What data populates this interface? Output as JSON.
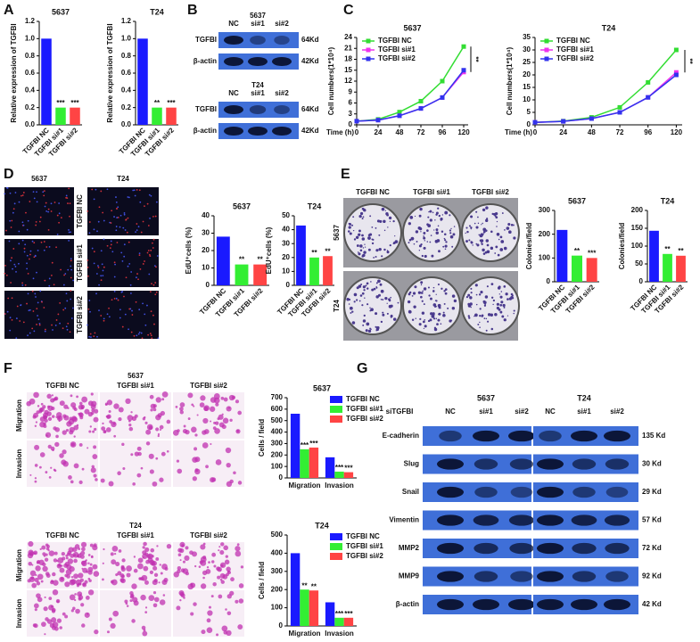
{
  "panel_labels": [
    "A",
    "B",
    "C",
    "D",
    "E",
    "F",
    "G"
  ],
  "chart_data": [
    {
      "type": "bar",
      "title": "5637",
      "ylabel": "Relative expression of TGFBI",
      "categories": [
        "TGFBI NC",
        "TGFBI si#1",
        "TGFBI si#2"
      ],
      "values": [
        1.0,
        0.2,
        0.2
      ],
      "significance": [
        null,
        "***",
        "***"
      ],
      "colors": [
        "#1a1aff",
        "#33ee33",
        "#ff4444"
      ],
      "ylim": [
        0,
        1.2
      ],
      "yticks": [
        {
          "value": 0,
          "label": "0.0"
        },
        0.2,
        0.4,
        0.6,
        0.8,
        {
          "value": 1,
          "label": "1.0"
        },
        1.2
      ]
    },
    {
      "type": "bar",
      "title": "T24",
      "ylabel": "Relative expression of TGFBI",
      "categories": [
        "TGFBI NC",
        "TGFBI si#1",
        "TGFBI si#2"
      ],
      "values": [
        1.0,
        0.2,
        0.2
      ],
      "significance": [
        null,
        "**",
        "***"
      ],
      "colors": [
        "#1a1aff",
        "#33ee33",
        "#ff4444"
      ],
      "ylim": [
        0,
        1.2
      ],
      "yticks": [
        {
          "value": 0,
          "label": "0.0"
        },
        0.2,
        0.4,
        0.6,
        0.8,
        {
          "value": 1,
          "label": "1.0"
        },
        1.2
      ]
    },
    {
      "type": "line",
      "title": "5637",
      "ylabel": "Cell numbers(1*10⁴)",
      "xlabel": "Time (h)",
      "x": [
        0,
        24,
        48,
        72,
        96,
        120
      ],
      "xlim": [
        0,
        125
      ],
      "xticks": [
        0,
        24,
        48,
        72,
        96,
        120
      ],
      "ylim": [
        0,
        24
      ],
      "yticks": [
        0,
        3,
        6,
        9,
        12,
        15,
        18,
        21,
        24
      ],
      "annotation": "**",
      "series": [
        {
          "name": "TGFBI NC",
          "color": "#33dd33",
          "values": [
            1,
            1.5,
            3.5,
            6.5,
            12,
            21.5
          ]
        },
        {
          "name": "TGFBI  si#1",
          "color": "#ee33ee",
          "values": [
            1,
            1.3,
            2.5,
            4.5,
            7.5,
            14.5
          ]
        },
        {
          "name": "TGFBI  si#2",
          "color": "#3333ee",
          "values": [
            1,
            1.3,
            2.5,
            4.5,
            7.5,
            15
          ]
        }
      ]
    },
    {
      "type": "line",
      "title": "T24",
      "ylabel": "Cell numbers(1*10⁴)",
      "xlabel": "Time (h)",
      "x": [
        0,
        24,
        48,
        72,
        96,
        120
      ],
      "xlim": [
        0,
        125
      ],
      "xticks": [
        0,
        24,
        48,
        72,
        96,
        120
      ],
      "ylim": [
        0,
        35
      ],
      "yticks": [
        0,
        5,
        10,
        15,
        20,
        25,
        30,
        35
      ],
      "annotation": "**",
      "series": [
        {
          "name": "TGFBI  NC",
          "color": "#33dd33",
          "values": [
            1,
            1.5,
            3,
            7,
            17,
            30
          ]
        },
        {
          "name": "TGFBI  si#1",
          "color": "#ee33ee",
          "values": [
            1,
            1.4,
            2.5,
            5,
            11,
            21
          ]
        },
        {
          "name": "TGFBI  si#2",
          "color": "#3333ee",
          "values": [
            1,
            1.4,
            2.5,
            5,
            11,
            20
          ]
        }
      ]
    },
    {
      "type": "bar",
      "title": "5637",
      "ylabel": "EdU⁺cells (%)",
      "categories": [
        "TGFBI NC",
        "TGFBI si#1",
        "TGFBI si#2"
      ],
      "values": [
        28,
        12,
        12
      ],
      "significance": [
        null,
        "**",
        "**"
      ],
      "colors": [
        "#1a1aff",
        "#33ee33",
        "#ff4444"
      ],
      "ylim": [
        0,
        40
      ],
      "yticks": [
        0,
        10,
        20,
        30,
        40
      ]
    },
    {
      "type": "bar",
      "title": "T24",
      "ylabel": "EdU⁺cells (%)",
      "categories": [
        "TGFBI NC",
        "TGFBI si#1",
        "TGFBI si#2"
      ],
      "values": [
        43,
        20,
        21
      ],
      "significance": [
        null,
        "**",
        "**"
      ],
      "colors": [
        "#1a1aff",
        "#33ee33",
        "#ff4444"
      ],
      "ylim": [
        0,
        50
      ],
      "yticks": [
        0,
        10,
        20,
        30,
        40,
        50
      ]
    },
    {
      "type": "bar",
      "title": "5637",
      "ylabel": "Colonies/field",
      "categories": [
        "TGFBI NC",
        "TGFBI si#1",
        "TGFBI si#2"
      ],
      "values": [
        218,
        110,
        100
      ],
      "significance": [
        null,
        "**",
        "***"
      ],
      "colors": [
        "#1a1aff",
        "#33ee33",
        "#ff4444"
      ],
      "ylim": [
        0,
        300
      ],
      "yticks": [
        0,
        100,
        200,
        300
      ]
    },
    {
      "type": "bar",
      "title": "T24",
      "ylabel": "Colonies/field",
      "categories": [
        "TGFBI NC",
        "TGFBI si#1",
        "TGFBI si#2"
      ],
      "values": [
        143,
        78,
        73
      ],
      "significance": [
        null,
        "**",
        "**"
      ],
      "colors": [
        "#1a1aff",
        "#33ee33",
        "#ff4444"
      ],
      "ylim": [
        0,
        200
      ],
      "yticks": [
        0,
        50,
        100,
        150,
        200
      ]
    },
    {
      "type": "bar",
      "title": "5637",
      "ylabel": "Cells / field",
      "categories": [
        "Migration",
        "Invasion"
      ],
      "legend": "upper right",
      "ylim": [
        0,
        700
      ],
      "yticks": [
        0,
        100,
        200,
        300,
        400,
        500,
        600,
        700
      ],
      "series": [
        {
          "name": "TGFBI NC",
          "color": "#1a1aff",
          "values": [
            560,
            180
          ],
          "significance": [
            null,
            null
          ]
        },
        {
          "name": "TGFBI si#1",
          "color": "#33ee33",
          "values": [
            250,
            55
          ],
          "significance": [
            "***",
            "***"
          ]
        },
        {
          "name": "TGFBI si#2",
          "color": "#ff4444",
          "values": [
            265,
            50
          ],
          "significance": [
            "***",
            "***"
          ]
        }
      ]
    },
    {
      "type": "bar",
      "title": "T24",
      "ylabel": "Cells / field",
      "categories": [
        "Migration",
        "Invasion"
      ],
      "legend": "upper right",
      "ylim": [
        0,
        500
      ],
      "yticks": [
        0,
        100,
        200,
        300,
        400,
        500
      ],
      "series": [
        {
          "name": "TGFBI NC",
          "color": "#1a1aff",
          "values": [
            400,
            130
          ],
          "significance": [
            null,
            null
          ]
        },
        {
          "name": "TGFBI si#1",
          "color": "#33ee33",
          "values": [
            200,
            45
          ],
          "significance": [
            "**",
            "***"
          ]
        },
        {
          "name": "TGFBI si#2",
          "color": "#ff4444",
          "values": [
            195,
            45
          ],
          "significance": [
            "**",
            "***"
          ]
        }
      ]
    }
  ],
  "blot_B": {
    "groups": [
      {
        "cell_line": "5637",
        "lanes": [
          "NC",
          "si#1",
          "si#2"
        ],
        "rows": [
          {
            "label": "TGFBI",
            "size": "64Kd"
          },
          {
            "label": "β-actin",
            "size": "42Kd"
          }
        ]
      },
      {
        "cell_line": "T24",
        "lanes": [
          "NC",
          "si#1",
          "si#2"
        ],
        "rows": [
          {
            "label": "TGFBI",
            "size": "64Kd"
          },
          {
            "label": "β-actin",
            "size": "42Kd"
          }
        ]
      }
    ]
  },
  "images_D": {
    "columns": [
      "5637",
      "T24"
    ],
    "rows": [
      "TGFBI NC",
      "TGFBI si#1",
      "TGFBI si#2"
    ]
  },
  "images_E": {
    "columns": [
      "TGFBI NC",
      "TGFBI si#1",
      "TGFBI si#2"
    ],
    "rows": [
      "5637",
      "T24"
    ]
  },
  "images_F": {
    "groups": [
      {
        "title": "5637",
        "columns": [
          "TGFBI NC",
          "TGFBI si#1",
          "TGFBI si#2"
        ],
        "rows": [
          "Migration",
          "Invasion"
        ]
      },
      {
        "title": "T24",
        "columns": [
          "TGFBI NC",
          "TGFBI si#1",
          "TGFBI si#2"
        ],
        "rows": [
          "Migration",
          "Invasion"
        ]
      }
    ]
  },
  "blot_G": {
    "lane_header": "siTGFBI",
    "groups": [
      {
        "cell_line": "5637",
        "lanes": [
          "NC",
          "si#1",
          "si#2"
        ]
      },
      {
        "cell_line": "T24",
        "lanes": [
          "NC",
          "si#1",
          "si#2"
        ]
      }
    ],
    "rows": [
      {
        "label": "E-cadherin",
        "size": "135 Kd"
      },
      {
        "label": "Slug",
        "size": "30 Kd"
      },
      {
        "label": "Snail",
        "size": "29 Kd"
      },
      {
        "label": "Vimentin",
        "size": "57 Kd"
      },
      {
        "label": "MMP2",
        "size": "72 Kd"
      },
      {
        "label": "MMP9",
        "size": "92 Kd"
      },
      {
        "label": "β-actin",
        "size": "42 Kd"
      }
    ]
  }
}
